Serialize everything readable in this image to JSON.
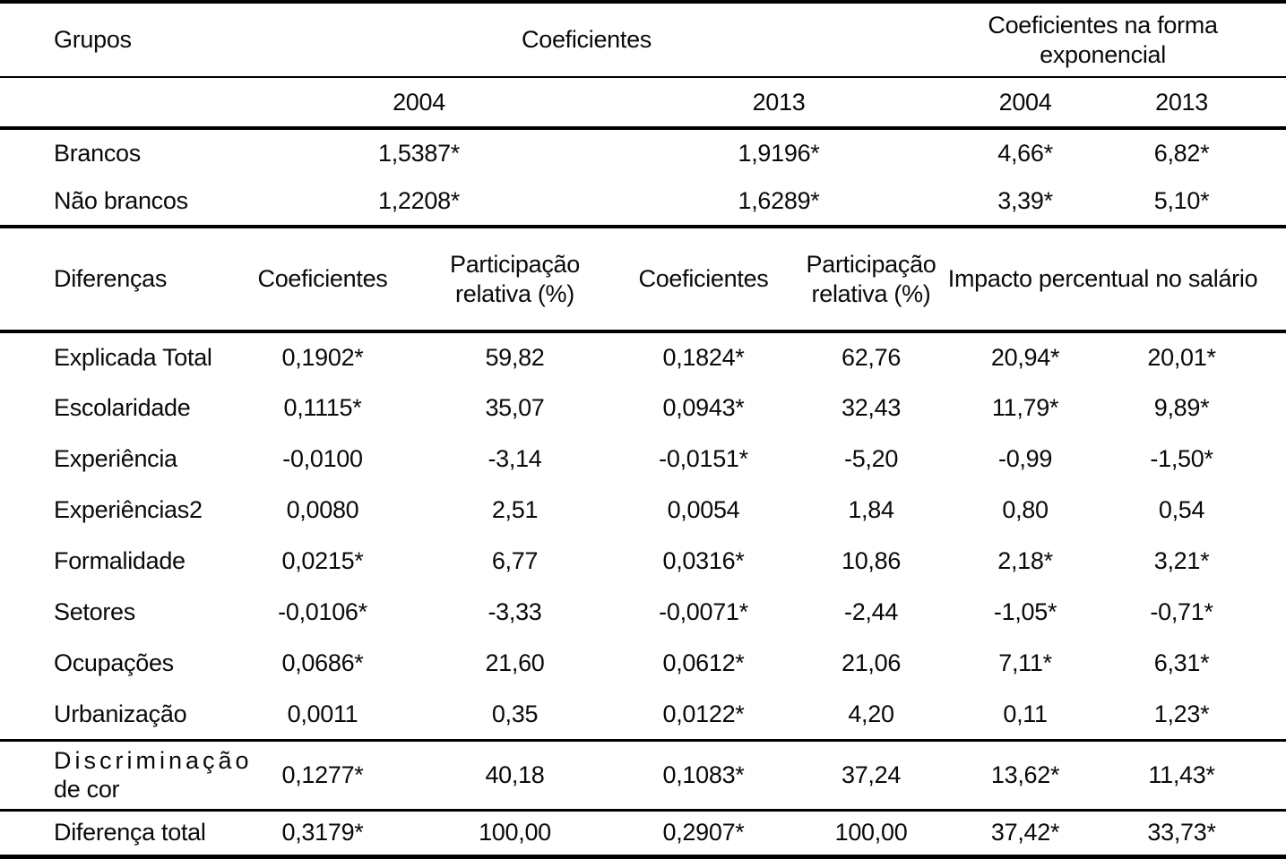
{
  "table": {
    "groups": {
      "header": {
        "groups_label": "Grupos",
        "coefficients_label": "Coeficientes",
        "exponential_label": "Coeficientes na forma exponencial"
      },
      "years": [
        "2004",
        "2013",
        "2004",
        "2013"
      ],
      "rows": [
        {
          "label": "Brancos",
          "values": [
            "1,5387*",
            "1,9196*",
            "4,66*",
            "6,82*"
          ]
        },
        {
          "label": "Não brancos",
          "values": [
            "1,2208*",
            "1,6289*",
            "3,39*",
            "5,10*"
          ]
        }
      ]
    },
    "differences": {
      "header": {
        "label": "Diferenças",
        "coef_2004": "Coeficientes",
        "part_2004": "Participação relativa (%)",
        "coef_2013": "Coeficientes",
        "part_2013": "Participação relativa (%)",
        "impact_label": "Impacto percentual no salário"
      },
      "rows": [
        {
          "label": "Explicada Total",
          "values": [
            "0,1902*",
            "59,82",
            "0,1824*",
            "62,76",
            "20,94*",
            "20,01*"
          ]
        },
        {
          "label": "Escolaridade",
          "values": [
            "0,1115*",
            "35,07",
            "0,0943*",
            "32,43",
            "11,79*",
            "9,89*"
          ]
        },
        {
          "label": "Experiência",
          "values": [
            "-0,0100",
            "-3,14",
            "-0,0151*",
            "-5,20",
            "-0,99",
            "-1,50*"
          ]
        },
        {
          "label": "Experiências2",
          "values": [
            "0,0080",
            "2,51",
            "0,0054",
            "1,84",
            "0,80",
            "0,54"
          ]
        },
        {
          "label": "Formalidade",
          "values": [
            "0,0215*",
            "6,77",
            "0,0316*",
            "10,86",
            "2,18*",
            "3,21*"
          ]
        },
        {
          "label": "Setores",
          "values": [
            "-0,0106*",
            "-3,33",
            "-0,0071*",
            "-2,44",
            "-1,05*",
            "-0,71*"
          ]
        },
        {
          "label": "Ocupações",
          "values": [
            "0,0686*",
            "21,60",
            "0,0612*",
            "21,06",
            "7,11*",
            "6,31*"
          ]
        },
        {
          "label": "Urbanização",
          "values": [
            "0,0011",
            "0,35",
            "0,0122*",
            "4,20",
            "0,11",
            "1,23*"
          ]
        }
      ],
      "discrimination": {
        "label_line1": "Discriminação",
        "label_line2": "de cor",
        "values": [
          "0,1277*",
          "40,18",
          "0,1083*",
          "37,24",
          "13,62*",
          "11,43*"
        ]
      },
      "total": {
        "label": "Diferença total",
        "values": [
          "0,3179*",
          "100,00",
          "0,2907*",
          "100,00",
          "37,42*",
          "33,73*"
        ]
      }
    }
  }
}
